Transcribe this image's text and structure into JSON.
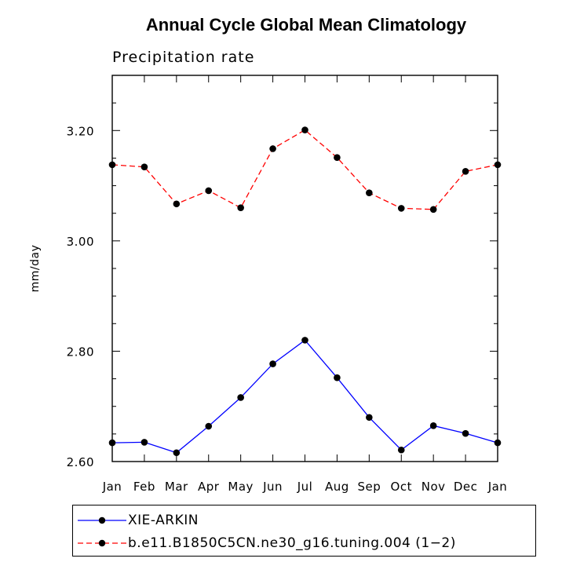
{
  "chart_data": {
    "type": "line",
    "title": "Annual Cycle Global Mean Climatology",
    "subtitle": "Precipitation rate",
    "xlabel": "",
    "ylabel": "mm/day",
    "categories": [
      "Jan",
      "Feb",
      "Mar",
      "Apr",
      "May",
      "Jun",
      "Jul",
      "Aug",
      "Sep",
      "Oct",
      "Nov",
      "Dec",
      "Jan"
    ],
    "ylim": [
      2.6,
      3.3
    ],
    "yticks": [
      2.6,
      2.8,
      3.0,
      3.2
    ],
    "ytick_labels": [
      "2.60",
      "2.80",
      "3.00",
      "3.20"
    ],
    "grid": false,
    "legend_position": "bottom",
    "series": [
      {
        "name": "XIE-ARKIN",
        "color": "#0000ff",
        "style": "solid",
        "marker": "filled-circle",
        "values": [
          2.634,
          2.635,
          2.616,
          2.664,
          2.716,
          2.777,
          2.82,
          2.752,
          2.68,
          2.621,
          2.665,
          2.651,
          2.634
        ]
      },
      {
        "name": "b.e11.B1850C5CN.ne30_g16.tuning.004 (1−2)",
        "color": "#ff0000",
        "style": "dashed",
        "marker": "filled-circle",
        "values": [
          3.138,
          3.134,
          3.067,
          3.091,
          3.06,
          3.167,
          3.201,
          3.151,
          3.087,
          3.059,
          3.057,
          3.126,
          3.138
        ]
      }
    ]
  }
}
